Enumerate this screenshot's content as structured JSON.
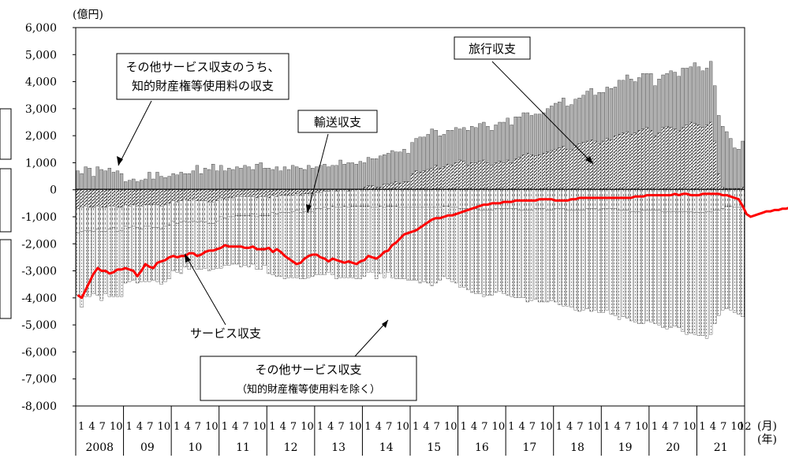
{
  "chart_data": {
    "type": "bar",
    "unit_label": "(億円)",
    "x_axis_month_label": "(月)",
    "x_axis_year_label": "(年)",
    "ylim": [
      -8000,
      6000
    ],
    "ytick_labels": [
      "6,000",
      "5,000",
      "4,000",
      "3,000",
      "2,000",
      "1,000",
      "0",
      "-1,000",
      "-2,000",
      "-3,000",
      "-4,000",
      "-5,000",
      "-6,000",
      "-7,000",
      "-8,000"
    ],
    "month_tick_labels": [
      "1",
      "4",
      "7",
      "10"
    ],
    "final_month_label": "12",
    "years": [
      "2008",
      "09",
      "10",
      "11",
      "12",
      "13",
      "14",
      "15",
      "16",
      "17",
      "18",
      "19",
      "20",
      "21"
    ],
    "stacked": true,
    "series": [
      {
        "name": "旅行収支",
        "values": [
          -700,
          -650,
          -600,
          -650,
          -650,
          -600,
          -650,
          -650,
          -600,
          -600,
          -650,
          -650,
          -550,
          -600,
          -550,
          -600,
          -600,
          -550,
          -550,
          -550,
          -550,
          -600,
          -550,
          -500,
          -400,
          -450,
          -400,
          -350,
          -400,
          -350,
          -400,
          -400,
          -400,
          -450,
          -450,
          -400,
          -300,
          -350,
          -300,
          -300,
          -250,
          -250,
          -250,
          -250,
          -250,
          -300,
          -250,
          -250,
          -300,
          -200,
          -250,
          -200,
          -200,
          -200,
          -200,
          -150,
          -200,
          -150,
          -150,
          -150,
          -100,
          -100,
          -50,
          -50,
          0,
          -50,
          0,
          0,
          -50,
          0,
          0,
          0,
          100,
          150,
          150,
          100,
          100,
          200,
          200,
          250,
          300,
          250,
          300,
          300,
          600,
          700,
          650,
          700,
          750,
          800,
          900,
          800,
          850,
          950,
          900,
          1000,
          1100,
          1050,
          900,
          1000,
          1000,
          1050,
          1100,
          1000,
          900,
          1000,
          1050,
          1000,
          1100,
          1000,
          1150,
          1200,
          1300,
          1350,
          1300,
          1250,
          1300,
          1350,
          1400,
          1450,
          1500,
          1550,
          1600,
          1500,
          1500,
          1650,
          1700,
          1750,
          1800,
          1850,
          1800,
          1700,
          1800,
          1900,
          1850,
          2000,
          2050,
          2100,
          2150,
          2050,
          2100,
          2200,
          2250,
          2300,
          2200,
          2000,
          2100,
          2300,
          2350,
          2300,
          2250,
          2200,
          2300,
          2400,
          2500,
          2450,
          2400,
          2300,
          2400,
          2500,
          1800,
          600,
          100,
          50,
          50,
          50,
          50,
          100,
          100,
          50,
          50,
          50,
          50,
          50,
          50,
          100,
          100,
          150,
          150,
          100,
          100,
          100,
          50,
          50
        ]
      },
      {
        "name": "輸送収支",
        "values": [
          -900,
          -900,
          -900,
          -850,
          -900,
          -850,
          -900,
          -900,
          -850,
          -800,
          -900,
          -850,
          -800,
          -800,
          -800,
          -800,
          -850,
          -800,
          -800,
          -850,
          -850,
          -850,
          -800,
          -800,
          -750,
          -800,
          -800,
          -800,
          -800,
          -800,
          -800,
          -750,
          -800,
          -800,
          -800,
          -750,
          -700,
          -700,
          -700,
          -700,
          -700,
          -700,
          -700,
          -700,
          -650,
          -700,
          -700,
          -700,
          -650,
          -650,
          -650,
          -650,
          -650,
          -650,
          -600,
          -600,
          -650,
          -650,
          -650,
          -650,
          -600,
          -600,
          -600,
          -650,
          -600,
          -600,
          -650,
          -600,
          -600,
          -600,
          -600,
          -600,
          -600,
          -600,
          -650,
          -650,
          -600,
          -650,
          -600,
          -600,
          -600,
          -650,
          -650,
          -650,
          -650,
          -650,
          -650,
          -650,
          -650,
          -650,
          -650,
          -650,
          -600,
          -600,
          -650,
          -650,
          -700,
          -700,
          -700,
          -700,
          -700,
          -750,
          -750,
          -750,
          -750,
          -700,
          -700,
          -700,
          -700,
          -700,
          -700,
          -750,
          -750,
          -750,
          -750,
          -700,
          -700,
          -700,
          -750,
          -750,
          -700,
          -700,
          -700,
          -750,
          -750,
          -750,
          -750,
          -750,
          -700,
          -700,
          -700,
          -750,
          -700,
          -700,
          -700,
          -700,
          -750,
          -750,
          -750,
          -800,
          -800,
          -800,
          -750,
          -750,
          -750,
          -750,
          -750,
          -800,
          -800,
          -800,
          -800,
          -800,
          -800,
          -800,
          -800,
          -850,
          -850,
          -850,
          -800,
          -800,
          -750,
          -750,
          -700,
          -600,
          -600,
          -650,
          -650,
          -650,
          -700,
          -750,
          -700,
          -650,
          -600,
          -600,
          -600,
          -650,
          -650,
          -700,
          -750,
          -750,
          -700,
          -700,
          -750,
          -700,
          -650,
          -650,
          -700,
          -700
        ]
      },
      {
        "name": "その他サービス収支のうち、知的財産権等使用料の収支",
        "values": [
          700,
          600,
          850,
          800,
          500,
          850,
          750,
          700,
          800,
          650,
          700,
          600,
          300,
          350,
          400,
          300,
          350,
          400,
          650,
          400,
          650,
          500,
          450,
          500,
          600,
          550,
          650,
          600,
          600,
          700,
          900,
          600,
          800,
          750,
          950,
          700,
          900,
          700,
          800,
          750,
          850,
          800,
          900,
          850,
          750,
          950,
          1000,
          800,
          800,
          750,
          850,
          700,
          850,
          750,
          900,
          850,
          800,
          750,
          900,
          800,
          850,
          900,
          950,
          850,
          900,
          900,
          1100,
          950,
          1000,
          1000,
          950,
          1050,
          900,
          1050,
          1000,
          1050,
          1150,
          1100,
          1150,
          1200,
          1100,
          1150,
          1200,
          1050,
          1150,
          1200,
          1300,
          1250,
          1300,
          1450,
          1300,
          1200,
          1200,
          1250,
          1300,
          1300,
          1150,
          1250,
          1300,
          1350,
          1300,
          1400,
          1400,
          1350,
          1300,
          1400,
          1450,
          1500,
          1550,
          1400,
          1550,
          1500,
          1550,
          1500,
          1450,
          1550,
          1500,
          1500,
          1600,
          1650,
          1700,
          1700,
          1800,
          1600,
          1650,
          1700,
          1700,
          1750,
          1850,
          1900,
          1700,
          1900,
          1800,
          1900,
          1900,
          1800,
          2000,
          1950,
          2100,
          2050,
          1900,
          1950,
          2050,
          2000,
          2100,
          1850,
          2000,
          1950,
          1950,
          2100,
          2100,
          2000,
          2200,
          2100,
          2050,
          2250,
          2150,
          2100,
          2100,
          2250,
          2050,
          2150,
          2250,
          2100,
          1850,
          1500,
          1450,
          1700,
          1650,
          1700,
          1800,
          1750,
          1650,
          1750,
          1600,
          1750,
          1650,
          1800,
          1700,
          1750,
          1800,
          1850,
          1900,
          2000,
          2050,
          2200,
          2150,
          2300
        ]
      },
      {
        "name": "その他サービス収支（知的財産権等使用料を除く）",
        "values": [
          -2300,
          -2800,
          -2450,
          -2450,
          -2300,
          -2450,
          -2550,
          -2300,
          -2500,
          -2550,
          -2400,
          -2450,
          -2100,
          -2000,
          -2000,
          -2050,
          -1950,
          -2050,
          -2050,
          -1950,
          -2000,
          -2050,
          -2050,
          -2000,
          -1850,
          -1800,
          -1900,
          -1700,
          -1750,
          -1700,
          -1750,
          -1800,
          -1700,
          -1750,
          -1700,
          -1750,
          -1900,
          -1750,
          -1800,
          -1750,
          -1800,
          -1900,
          -1850,
          -1900,
          -1850,
          -1950,
          -2000,
          -1850,
          -2150,
          -2300,
          -2300,
          -2350,
          -2450,
          -2400,
          -2450,
          -2500,
          -2450,
          -2500,
          -2450,
          -2400,
          -2450,
          -2450,
          -2500,
          -2350,
          -2550,
          -2650,
          -2600,
          -2650,
          -2600,
          -2650,
          -2700,
          -2700,
          -2600,
          -2450,
          -2400,
          -2650,
          -2500,
          -2600,
          -2450,
          -2650,
          -2700,
          -2650,
          -2650,
          -2700,
          -2700,
          -2700,
          -2800,
          -2750,
          -2800,
          -2900,
          -2800,
          -2700,
          -2600,
          -2700,
          -2750,
          -2800,
          -2900,
          -2900,
          -3000,
          -3100,
          -3150,
          -3100,
          -3200,
          -3150,
          -3150,
          -3100,
          -3050,
          -3150,
          -3200,
          -3250,
          -3300,
          -3250,
          -3250,
          -3400,
          -3350,
          -3350,
          -3450,
          -3450,
          -3400,
          -3350,
          -3450,
          -3550,
          -3600,
          -3550,
          -3600,
          -3700,
          -3750,
          -3700,
          -3700,
          -3800,
          -3750,
          -3800,
          -3850,
          -3750,
          -3900,
          -3950,
          -4050,
          -3950,
          -4000,
          -4050,
          -4100,
          -4150,
          -4200,
          -4100,
          -4150,
          -4200,
          -4250,
          -4300,
          -4350,
          -4300,
          -4250,
          -4300,
          -4450,
          -4550,
          -4500,
          -4500,
          -4550,
          -4550,
          -4700,
          -4550,
          -4200,
          -3900,
          -3750,
          -3800,
          -3850,
          -3900,
          -3950,
          -4050,
          -4000,
          -4050,
          -4100,
          -4150,
          -4200,
          -4250,
          -4300,
          -4500,
          -4600,
          -4700,
          -4750,
          -4800,
          -4850,
          -4950,
          -5000,
          -5050,
          -5100,
          -5150
        ]
      },
      {
        "name": "サービス収支",
        "type": "line",
        "color": "#ff0000",
        "values": [
          -3900,
          -4000,
          -3700,
          -3400,
          -3100,
          -2900,
          -3000,
          -3000,
          -3100,
          -3050,
          -2950,
          -2950,
          -2900,
          -2950,
          -3000,
          -3200,
          -3000,
          -2750,
          -2850,
          -2900,
          -2700,
          -2650,
          -2600,
          -2500,
          -2450,
          -2500,
          -2450,
          -2450,
          -2350,
          -2350,
          -2450,
          -2400,
          -2300,
          -2250,
          -2250,
          -2200,
          -2150,
          -2050,
          -2100,
          -2100,
          -2100,
          -2100,
          -2150,
          -2150,
          -2100,
          -2200,
          -2200,
          -2200,
          -2150,
          -2300,
          -2200,
          -2300,
          -2450,
          -2550,
          -2650,
          -2750,
          -2700,
          -2550,
          -2450,
          -2400,
          -2400,
          -2500,
          -2550,
          -2650,
          -2550,
          -2600,
          -2650,
          -2700,
          -2650,
          -2700,
          -2750,
          -2650,
          -2600,
          -2450,
          -2500,
          -2550,
          -2450,
          -2300,
          -2250,
          -2050,
          -1950,
          -1800,
          -1650,
          -1600,
          -1550,
          -1500,
          -1400,
          -1300,
          -1200,
          -1100,
          -1050,
          -1050,
          -1000,
          -950,
          -950,
          -900,
          -850,
          -800,
          -750,
          -700,
          -650,
          -600,
          -550,
          -550,
          -500,
          -500,
          -500,
          -450,
          -450,
          -450,
          -400,
          -400,
          -400,
          -400,
          -400,
          -400,
          -350,
          -350,
          -350,
          -350,
          -400,
          -400,
          -400,
          -400,
          -350,
          -350,
          -300,
          -300,
          -300,
          -300,
          -300,
          -300,
          -300,
          -300,
          -300,
          -300,
          -300,
          -300,
          -300,
          -300,
          -250,
          -250,
          -250,
          -200,
          -200,
          -200,
          -200,
          -200,
          -200,
          -200,
          -150,
          -200,
          -150,
          -150,
          -200,
          -200,
          -200,
          -150,
          -150,
          -150,
          -150,
          -150,
          -200,
          -200,
          -250,
          -300,
          -350,
          -600,
          -900,
          -1000,
          -950,
          -900,
          -850,
          -800,
          -800,
          -750,
          -750,
          -700,
          -700,
          -650,
          -650,
          -600,
          -550,
          -500,
          -500,
          -450,
          -450,
          -400,
          -400,
          -350,
          -300,
          -250
        ]
      }
    ],
    "annotations": {
      "ip_line1": "その他サービス収支のうち、",
      "ip_line2": "知的財産権等使用料の収支",
      "travel": "旅行収支",
      "transport": "輸送収支",
      "services": "サービス収支",
      "other_line1": "その他サービス収支",
      "other_line2": "（知的財産権等使用料を除く）"
    }
  }
}
